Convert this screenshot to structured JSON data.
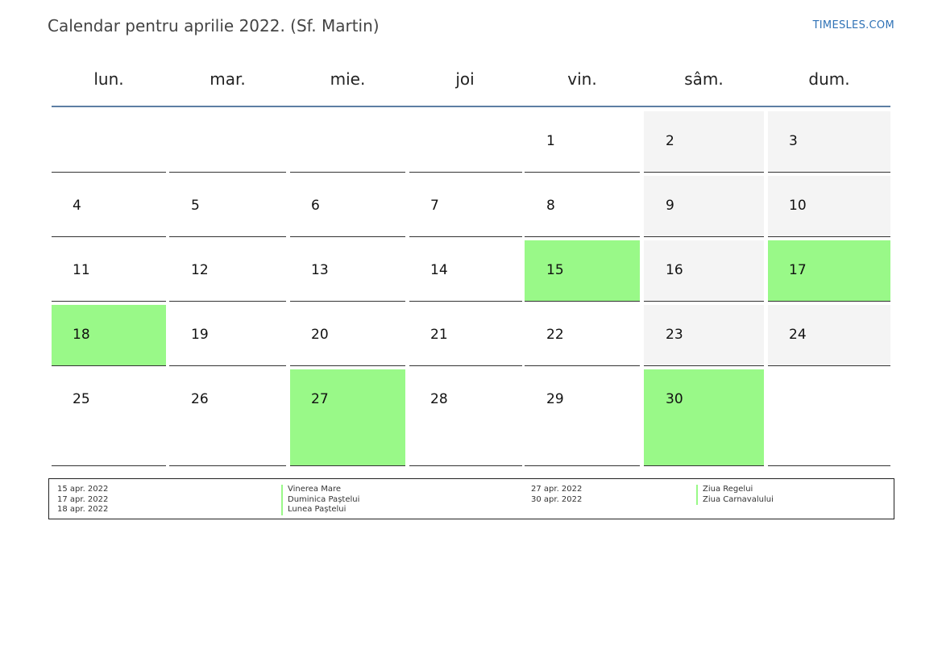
{
  "title": "Calendar pentru aprilie 2022. (Sf. Martin)",
  "site_link": "TIMESLES.COM",
  "weekdays": [
    "lun.",
    "mar.",
    "mie.",
    "joi",
    "vin.",
    "sâm.",
    "dum."
  ],
  "colors": {
    "holiday": "#99f988",
    "weekend": "#f4f4f4",
    "header_rule": "#5d7ea3",
    "link": "#2f72b6"
  },
  "weeks": [
    [
      "",
      "",
      "",
      "",
      "1",
      "2",
      "3"
    ],
    [
      "4",
      "5",
      "6",
      "7",
      "8",
      "9",
      "10"
    ],
    [
      "11",
      "12",
      "13",
      "14",
      "15",
      "16",
      "17"
    ],
    [
      "18",
      "19",
      "20",
      "21",
      "22",
      "23",
      "24"
    ],
    [
      "25",
      "26",
      "27",
      "28",
      "29",
      "30",
      ""
    ]
  ],
  "holiday_days": [
    "15",
    "17",
    "18",
    "27",
    "30"
  ],
  "legend": {
    "group1_dates": [
      "15 apr. 2022",
      "17 apr. 2022",
      "18 apr. 2022"
    ],
    "group1_names": [
      "Vinerea Mare",
      "Duminica Paștelui",
      "Lunea Paștelui"
    ],
    "group2_dates": [
      "27 apr. 2022",
      "30 apr. 2022"
    ],
    "group2_names": [
      "Ziua Regelui",
      "Ziua Carnavalului"
    ]
  }
}
